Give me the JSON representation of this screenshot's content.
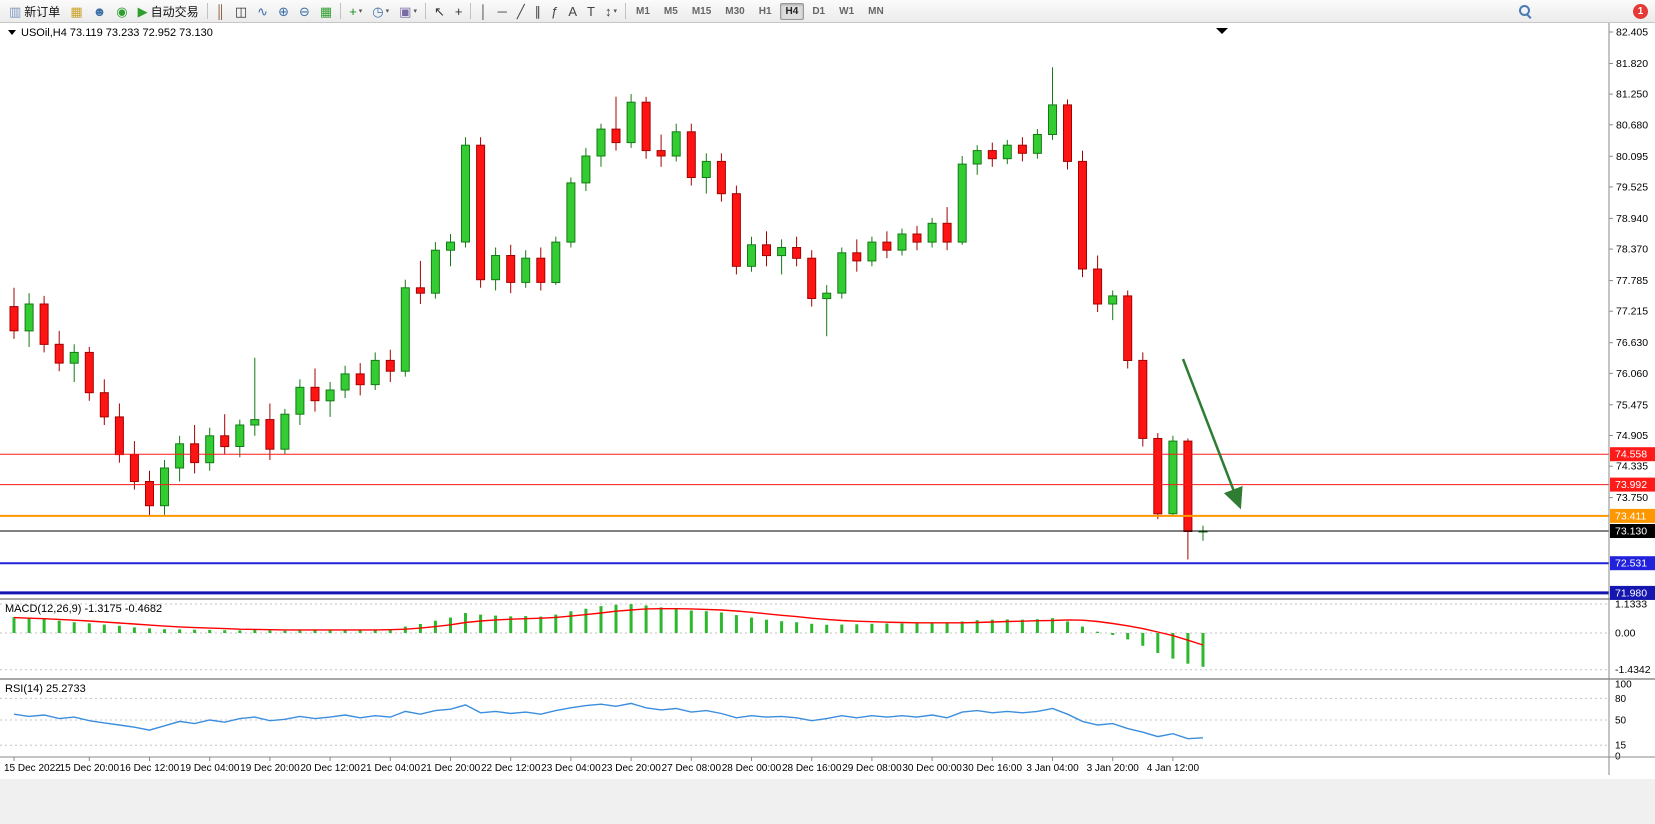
{
  "toolbar": {
    "new_order_label": "新订单",
    "auto_trading_label": "自动交易",
    "notification_count": "1",
    "timeframes": [
      "M1",
      "M5",
      "M15",
      "M30",
      "H1",
      "H4",
      "D1",
      "W1",
      "MN"
    ],
    "active_timeframe": "H4",
    "buttons": [
      {
        "name": "new-order-button",
        "icon": "new-order-icon",
        "glyph": "▥",
        "color": "#7d96bd",
        "label": "新订单"
      },
      {
        "name": "chart-profile-button",
        "icon": "chart-profile-icon",
        "glyph": "▦",
        "color": "#c9a227"
      },
      {
        "name": "accounts-button",
        "icon": "accounts-icon",
        "glyph": "☻",
        "color": "#3a6ea5"
      },
      {
        "name": "community-button",
        "icon": "community-icon",
        "glyph": "◉",
        "color": "#2f9e2f"
      },
      {
        "name": "auto-trading-button",
        "icon": "auto-trading-icon",
        "glyph": "▶",
        "color": "#2f9e2f",
        "label": "自动交易"
      },
      {
        "type": "sep"
      },
      {
        "name": "bar-chart-button",
        "icon": "bar-chart-icon",
        "glyph": "║",
        "color": "#8a5a3a"
      },
      {
        "name": "candlestick-chart-button",
        "icon": "candlestick-chart-icon",
        "glyph": "◫",
        "color": "#333333"
      },
      {
        "name": "line-chart-button",
        "icon": "line-chart-icon",
        "glyph": "∿",
        "color": "#3a6ea5"
      },
      {
        "name": "zoom-in-button",
        "icon": "zoom-in-icon",
        "glyph": "⊕",
        "color": "#3a6ea5"
      },
      {
        "name": "zoom-out-button",
        "icon": "zoom-out-icon",
        "glyph": "⊖",
        "color": "#3a6ea5"
      },
      {
        "name": "tile-windows-button",
        "icon": "tile-windows-icon",
        "glyph": "▦",
        "color": "#2f9e2f"
      },
      {
        "type": "sep"
      },
      {
        "name": "indicators-button",
        "icon": "indicators-icon",
        "glyph": "+",
        "color": "#1e8a1e",
        "dropdown": true
      },
      {
        "name": "periods-button",
        "icon": "clock-icon",
        "glyph": "◷",
        "color": "#3a6ea5",
        "dropdown": true
      },
      {
        "name": "templates-button",
        "icon": "template-icon",
        "glyph": "▣",
        "color": "#7a6aa5",
        "dropdown": true
      },
      {
        "type": "sep"
      },
      {
        "name": "cursor-button",
        "icon": "cursor-icon",
        "glyph": "↖",
        "color": "#333333"
      },
      {
        "name": "crosshair-button",
        "icon": "crosshair-icon",
        "glyph": "+",
        "color": "#333333"
      },
      {
        "type": "sep"
      },
      {
        "name": "vertical-line-button",
        "icon": "vertical-line-icon",
        "glyph": "│",
        "color": "#444444"
      },
      {
        "name": "horizontal-line-button",
        "icon": "horizontal-line-icon",
        "glyph": "─",
        "color": "#444444"
      },
      {
        "name": "trendline-button",
        "icon": "trendline-icon",
        "glyph": "╱",
        "color": "#444444"
      },
      {
        "name": "channel-button",
        "icon": "channel-icon",
        "glyph": "∥",
        "color": "#444444"
      },
      {
        "name": "fibonacci-button",
        "icon": "fibonacci-icon",
        "glyph": "ƒ",
        "color": "#444444"
      },
      {
        "name": "text-button",
        "icon": "text-icon",
        "glyph": "A",
        "color": "#444444"
      },
      {
        "name": "text-label-button",
        "icon": "text-label-icon",
        "glyph": "T",
        "color": "#444444"
      },
      {
        "name": "arrows-button",
        "icon": "arrows-icon",
        "glyph": "↕",
        "color": "#444444",
        "dropdown": true
      },
      {
        "type": "sep"
      }
    ]
  },
  "chart": {
    "symbol_label": "USOil,H4 73.119 73.233 72.952 73.130",
    "ohlc": {
      "open": "73.119",
      "high": "73.233",
      "low": "72.952",
      "close": "73.130"
    },
    "price_axis": [
      "82.405",
      "81.820",
      "81.250",
      "80.680",
      "80.095",
      "79.525",
      "78.940",
      "78.370",
      "77.785",
      "77.215",
      "76.630",
      "76.060",
      "75.475",
      "74.905",
      "74.335",
      "73.750"
    ],
    "price_lines": [
      {
        "price": 74.558,
        "label": "74.558",
        "color": "#ff1a1a",
        "width": 1
      },
      {
        "price": 73.992,
        "label": "73.992",
        "color": "#ff1a1a",
        "width": 1
      },
      {
        "price": 73.411,
        "label": "73.411",
        "color": "#ff9800",
        "width": 2
      },
      {
        "price": 73.13,
        "label": "73.130",
        "color": "#000000",
        "width": 1
      },
      {
        "price": 72.531,
        "label": "72.531",
        "color": "#2222dd",
        "width": 2
      },
      {
        "price": 71.98,
        "label": "71.980",
        "color": "#1515b0",
        "width": 3
      }
    ],
    "time_axis": [
      "15 Dec 2022",
      "15 Dec 20:00",
      "16 Dec 12:00",
      "19 Dec 04:00",
      "19 Dec 20:00",
      "20 Dec 12:00",
      "21 Dec 04:00",
      "21 Dec 20:00",
      "22 Dec 12:00",
      "23 Dec 04:00",
      "23 Dec 20:00",
      "27 Dec 08:00",
      "28 Dec 00:00",
      "28 Dec 16:00",
      "29 Dec 08:00",
      "30 Dec 00:00",
      "30 Dec 16:00",
      "3 Jan 04:00",
      "3 Jan 20:00",
      "4 Jan 12:00"
    ],
    "arrow": {
      "color": "#2e7d32"
    }
  },
  "chart_data": {
    "type": "candlestick",
    "symbol": "USOil",
    "timeframe": "H4",
    "bull_color": "#33cc33",
    "bear_color": "#ff1414",
    "ylim": [
      71.6,
      82.55
    ],
    "candles": [
      [
        77.3,
        77.65,
        76.7,
        76.85
      ],
      [
        76.85,
        77.55,
        76.55,
        77.35
      ],
      [
        77.35,
        77.5,
        76.45,
        76.6
      ],
      [
        76.6,
        76.85,
        76.1,
        76.25
      ],
      [
        76.25,
        76.6,
        75.9,
        76.45
      ],
      [
        76.45,
        76.55,
        75.55,
        75.7
      ],
      [
        75.7,
        75.95,
        75.1,
        75.25
      ],
      [
        75.25,
        75.5,
        74.4,
        74.55
      ],
      [
        74.55,
        74.8,
        73.9,
        74.05
      ],
      [
        74.05,
        74.25,
        73.42,
        73.6
      ],
      [
        73.6,
        74.45,
        73.4,
        74.3
      ],
      [
        74.3,
        74.9,
        74.05,
        74.75
      ],
      [
        74.75,
        75.1,
        74.2,
        74.4
      ],
      [
        74.4,
        75.05,
        74.25,
        74.9
      ],
      [
        74.9,
        75.3,
        74.55,
        74.7
      ],
      [
        74.7,
        75.2,
        74.5,
        75.1
      ],
      [
        75.1,
        76.35,
        74.9,
        75.2
      ],
      [
        75.2,
        75.5,
        74.45,
        74.65
      ],
      [
        74.65,
        75.4,
        74.55,
        75.3
      ],
      [
        75.3,
        75.95,
        75.1,
        75.8
      ],
      [
        75.8,
        76.15,
        75.35,
        75.55
      ],
      [
        75.55,
        75.9,
        75.25,
        75.75
      ],
      [
        75.75,
        76.2,
        75.6,
        76.05
      ],
      [
        76.05,
        76.25,
        75.65,
        75.85
      ],
      [
        75.85,
        76.45,
        75.75,
        76.3
      ],
      [
        76.3,
        76.5,
        75.9,
        76.1
      ],
      [
        76.1,
        77.8,
        76.0,
        77.65
      ],
      [
        77.65,
        78.15,
        77.35,
        77.55
      ],
      [
        77.55,
        78.5,
        77.45,
        78.35
      ],
      [
        78.35,
        78.65,
        78.05,
        78.5
      ],
      [
        78.5,
        80.45,
        78.4,
        80.3
      ],
      [
        80.3,
        80.45,
        77.65,
        77.8
      ],
      [
        77.8,
        78.4,
        77.6,
        78.25
      ],
      [
        78.25,
        78.45,
        77.55,
        77.75
      ],
      [
        77.75,
        78.35,
        77.65,
        78.2
      ],
      [
        78.2,
        78.4,
        77.6,
        77.75
      ],
      [
        77.75,
        78.6,
        77.7,
        78.5
      ],
      [
        78.5,
        79.7,
        78.4,
        79.6
      ],
      [
        79.6,
        80.25,
        79.45,
        80.1
      ],
      [
        80.1,
        80.7,
        79.9,
        80.6
      ],
      [
        80.6,
        81.2,
        80.2,
        80.35
      ],
      [
        80.35,
        81.25,
        80.25,
        81.1
      ],
      [
        81.1,
        81.2,
        80.05,
        80.2
      ],
      [
        80.2,
        80.5,
        79.9,
        80.1
      ],
      [
        80.1,
        80.7,
        80.0,
        80.55
      ],
      [
        80.55,
        80.7,
        79.55,
        79.7
      ],
      [
        79.7,
        80.15,
        79.4,
        80.0
      ],
      [
        80.0,
        80.15,
        79.25,
        79.4
      ],
      [
        79.4,
        79.55,
        77.9,
        78.05
      ],
      [
        78.05,
        78.6,
        77.95,
        78.45
      ],
      [
        78.45,
        78.7,
        78.05,
        78.25
      ],
      [
        78.25,
        78.55,
        77.9,
        78.4
      ],
      [
        78.4,
        78.6,
        78.05,
        78.2
      ],
      [
        78.2,
        78.35,
        77.3,
        77.45
      ],
      [
        77.45,
        77.7,
        76.75,
        77.55
      ],
      [
        77.55,
        78.4,
        77.45,
        78.3
      ],
      [
        78.3,
        78.55,
        77.95,
        78.15
      ],
      [
        78.15,
        78.6,
        78.05,
        78.5
      ],
      [
        78.5,
        78.7,
        78.2,
        78.35
      ],
      [
        78.35,
        78.75,
        78.25,
        78.65
      ],
      [
        78.65,
        78.8,
        78.35,
        78.5
      ],
      [
        78.5,
        78.95,
        78.4,
        78.85
      ],
      [
        78.85,
        79.15,
        78.35,
        78.5
      ],
      [
        78.5,
        80.1,
        78.45,
        79.95
      ],
      [
        79.95,
        80.3,
        79.75,
        80.2
      ],
      [
        80.2,
        80.35,
        79.9,
        80.05
      ],
      [
        80.05,
        80.4,
        79.95,
        80.3
      ],
      [
        80.3,
        80.45,
        80.0,
        80.15
      ],
      [
        80.15,
        80.6,
        80.05,
        80.5
      ],
      [
        80.5,
        81.75,
        80.4,
        81.05
      ],
      [
        81.05,
        81.15,
        79.85,
        80.0
      ],
      [
        80.0,
        80.2,
        77.85,
        78.0
      ],
      [
        78.0,
        78.25,
        77.2,
        77.35
      ],
      [
        77.35,
        77.6,
        77.05,
        77.5
      ],
      [
        77.5,
        77.6,
        76.15,
        76.3
      ],
      [
        76.3,
        76.45,
        74.7,
        74.85
      ],
      [
        74.85,
        74.95,
        73.35,
        73.45
      ],
      [
        73.45,
        74.9,
        73.4,
        74.8
      ],
      [
        74.8,
        74.85,
        72.6,
        73.12
      ],
      [
        73.12,
        73.23,
        72.95,
        73.13
      ]
    ]
  },
  "macd": {
    "label": "MACD(12,26,9) -1.3175 -0.4682",
    "current_value": "-1.3175",
    "current_signal": "-0.4682",
    "axis": [
      "1.1333",
      "0.00",
      "-1.4342"
    ],
    "hist_color": "#2db82d",
    "signal_color": "#ff0000",
    "values": [
      0.62,
      0.58,
      0.55,
      0.48,
      0.42,
      0.38,
      0.33,
      0.28,
      0.22,
      0.18,
      0.15,
      0.14,
      0.13,
      0.12,
      0.11,
      0.1,
      0.12,
      0.1,
      0.09,
      0.1,
      0.12,
      0.11,
      0.13,
      0.12,
      0.14,
      0.13,
      0.25,
      0.35,
      0.48,
      0.6,
      0.78,
      0.72,
      0.68,
      0.65,
      0.66,
      0.64,
      0.72,
      0.85,
      0.95,
      1.05,
      1.1,
      1.13,
      1.08,
      1.0,
      0.95,
      0.88,
      0.85,
      0.8,
      0.7,
      0.6,
      0.52,
      0.46,
      0.42,
      0.36,
      0.32,
      0.33,
      0.34,
      0.36,
      0.37,
      0.38,
      0.38,
      0.4,
      0.38,
      0.45,
      0.5,
      0.52,
      0.53,
      0.52,
      0.54,
      0.58,
      0.45,
      0.25,
      0.05,
      -0.08,
      -0.25,
      -0.5,
      -0.78,
      -1.0,
      -1.2,
      -1.32
    ],
    "signal": [
      0.6,
      0.58,
      0.56,
      0.53,
      0.5,
      0.47,
      0.43,
      0.39,
      0.35,
      0.31,
      0.27,
      0.24,
      0.21,
      0.19,
      0.17,
      0.15,
      0.14,
      0.13,
      0.12,
      0.12,
      0.12,
      0.12,
      0.12,
      0.12,
      0.12,
      0.13,
      0.15,
      0.19,
      0.25,
      0.32,
      0.41,
      0.47,
      0.51,
      0.54,
      0.56,
      0.58,
      0.61,
      0.66,
      0.72,
      0.78,
      0.85,
      0.9,
      0.94,
      0.95,
      0.95,
      0.94,
      0.92,
      0.9,
      0.86,
      0.81,
      0.75,
      0.69,
      0.64,
      0.58,
      0.53,
      0.49,
      0.46,
      0.44,
      0.42,
      0.41,
      0.4,
      0.4,
      0.4,
      0.4,
      0.41,
      0.43,
      0.45,
      0.46,
      0.48,
      0.49,
      0.51,
      0.5,
      0.45,
      0.37,
      0.28,
      0.17,
      0.04,
      -0.1,
      -0.28,
      -0.47
    ]
  },
  "rsi": {
    "label": "RSI(14) 25.2733",
    "current_value": "25.2733",
    "axis": [
      "100",
      "80",
      "50",
      "15",
      "0"
    ],
    "levels": [
      80,
      50,
      15
    ],
    "line_color": "#3b8ede",
    "values": [
      58,
      55,
      57,
      52,
      54,
      49,
      46,
      43,
      40,
      36,
      42,
      48,
      45,
      50,
      47,
      52,
      54,
      49,
      51,
      55,
      52,
      54,
      57,
      53,
      56,
      54,
      62,
      58,
      63,
      65,
      71,
      60,
      62,
      59,
      61,
      58,
      63,
      67,
      70,
      72,
      69,
      73,
      67,
      64,
      66,
      61,
      63,
      59,
      53,
      56,
      54,
      55,
      53,
      49,
      52,
      56,
      53,
      56,
      54,
      56,
      54,
      57,
      53,
      61,
      63,
      60,
      62,
      60,
      62,
      66,
      58,
      48,
      43,
      45,
      38,
      33,
      27,
      31,
      24,
      25.27
    ]
  }
}
